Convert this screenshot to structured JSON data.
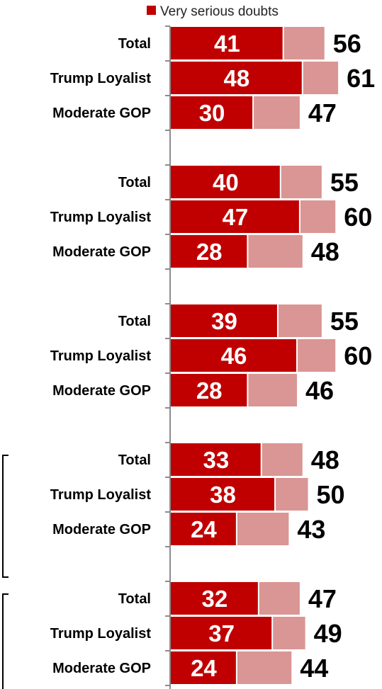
{
  "colors": {
    "very_serious": "#c00000",
    "total_doubts": "#d99694",
    "axis": "#8c8c8c",
    "bracket": "#000000"
  },
  "legend": {
    "very_serious_label": "Very serious doubts"
  },
  "chart_data": {
    "type": "bar",
    "orientation": "horizontal",
    "stacking": "overlay",
    "xlim": [
      0,
      65
    ],
    "grid": false,
    "legend_position": "top",
    "categories": [
      "Total",
      "Trump Loyalist",
      "Moderate GOP",
      "Total",
      "Trump Loyalist",
      "Moderate GOP",
      "Total",
      "Trump Loyalist",
      "Moderate GOP",
      "Total",
      "Trump Loyalist",
      "Moderate GOP",
      "Total",
      "Trump Loyalist",
      "Moderate GOP"
    ],
    "series": [
      {
        "name": "Very serious doubts",
        "values": [
          41,
          48,
          30,
          40,
          47,
          28,
          39,
          46,
          28,
          33,
          38,
          24,
          32,
          37,
          24
        ]
      },
      {
        "values": [
          56,
          61,
          47,
          55,
          60,
          48,
          55,
          60,
          46,
          48,
          50,
          43,
          47,
          49,
          44
        ]
      }
    ]
  }
}
